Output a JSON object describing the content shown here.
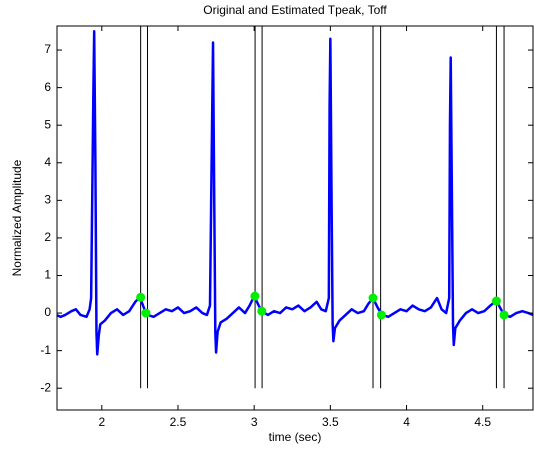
{
  "chart_data": {
    "type": "line",
    "title": "Original and Estimated Tpeak, Toff",
    "xlabel": "time (sec)",
    "ylabel": "Normalized Amplitude",
    "xlim": [
      1.706,
      4.83
    ],
    "ylim": [
      -2.58,
      7.64
    ],
    "xticks": [
      2,
      2.5,
      3,
      3.5,
      4,
      4.5
    ],
    "yticks": [
      -2,
      -1,
      0,
      1,
      2,
      3,
      4,
      5,
      6,
      7
    ],
    "series": [
      {
        "color": "#0000ff",
        "x": [
          1.7,
          1.73,
          1.76,
          1.8,
          1.83,
          1.86,
          1.9,
          1.92,
          1.93,
          1.945,
          1.95,
          1.958,
          1.965,
          1.97,
          1.98,
          1.99,
          2.02,
          2.06,
          2.1,
          2.14,
          2.18,
          2.22,
          2.25,
          2.28,
          2.3,
          2.34,
          2.38,
          2.42,
          2.46,
          2.5,
          2.54,
          2.58,
          2.62,
          2.66,
          2.69,
          2.71,
          2.725,
          2.73,
          2.738,
          2.745,
          2.75,
          2.76,
          2.78,
          2.82,
          2.86,
          2.9,
          2.94,
          2.97,
          3.0,
          3.03,
          3.05,
          3.09,
          3.13,
          3.17,
          3.21,
          3.25,
          3.29,
          3.33,
          3.37,
          3.41,
          3.44,
          3.47,
          3.49,
          3.495,
          3.5,
          3.508,
          3.515,
          3.52,
          3.53,
          3.56,
          3.6,
          3.64,
          3.68,
          3.72,
          3.75,
          3.78,
          3.81,
          3.84,
          3.88,
          3.92,
          3.96,
          4.0,
          4.04,
          4.08,
          4.12,
          4.16,
          4.2,
          4.23,
          4.26,
          4.28,
          4.285,
          4.29,
          4.298,
          4.305,
          4.31,
          4.32,
          4.35,
          4.39,
          4.43,
          4.47,
          4.51,
          4.55,
          4.59,
          4.62,
          4.64,
          4.68,
          4.72,
          4.76,
          4.8,
          4.83
        ],
        "values": [
          -0.05,
          -0.1,
          -0.05,
          0.05,
          0.1,
          -0.05,
          -0.1,
          0.1,
          0.4,
          6.0,
          7.5,
          4,
          -0.5,
          -1.1,
          -0.6,
          -0.3,
          -0.2,
          0.0,
          0.1,
          -0.05,
          0.05,
          0.3,
          0.42,
          0.1,
          -0.05,
          -0.1,
          0.0,
          0.1,
          0.05,
          0.15,
          0.0,
          0.05,
          0.15,
          0.0,
          -0.05,
          0.2,
          5.5,
          7.2,
          3,
          -0.5,
          -1.05,
          -0.5,
          -0.25,
          -0.15,
          0.0,
          0.15,
          0.0,
          0.2,
          0.45,
          0.2,
          0.05,
          -0.05,
          0.05,
          0.0,
          0.15,
          0.1,
          0.2,
          0.05,
          0.15,
          0.3,
          0.1,
          0.05,
          0.4,
          5.5,
          7.3,
          3,
          -0.3,
          -0.75,
          -0.4,
          -0.2,
          -0.05,
          0.1,
          0.0,
          0.05,
          0.25,
          0.4,
          0.15,
          -0.05,
          -0.1,
          0.0,
          0.1,
          0.05,
          0.2,
          0.1,
          0.05,
          0.15,
          0.4,
          0.1,
          0.0,
          0.4,
          5,
          6.8,
          3,
          -0.3,
          -0.85,
          -0.4,
          -0.2,
          0.0,
          0.1,
          0.0,
          0.05,
          0.2,
          0.32,
          0.1,
          -0.05,
          -0.1,
          0.0,
          0.05,
          0.0,
          -0.05
        ]
      }
    ],
    "points": {
      "color": "#00ee00",
      "x": [
        2.255,
        2.29,
        3.005,
        3.05,
        3.78,
        3.835,
        4.59,
        4.64
      ],
      "values": [
        0.42,
        0.0,
        0.45,
        0.05,
        0.4,
        -0.05,
        0.32,
        -0.05
      ]
    },
    "vlines": {
      "color": "#000000",
      "ymin": -2,
      "x": [
        2.255,
        2.3,
        3.006,
        3.052,
        3.78,
        3.83,
        4.59,
        4.64
      ]
    }
  }
}
